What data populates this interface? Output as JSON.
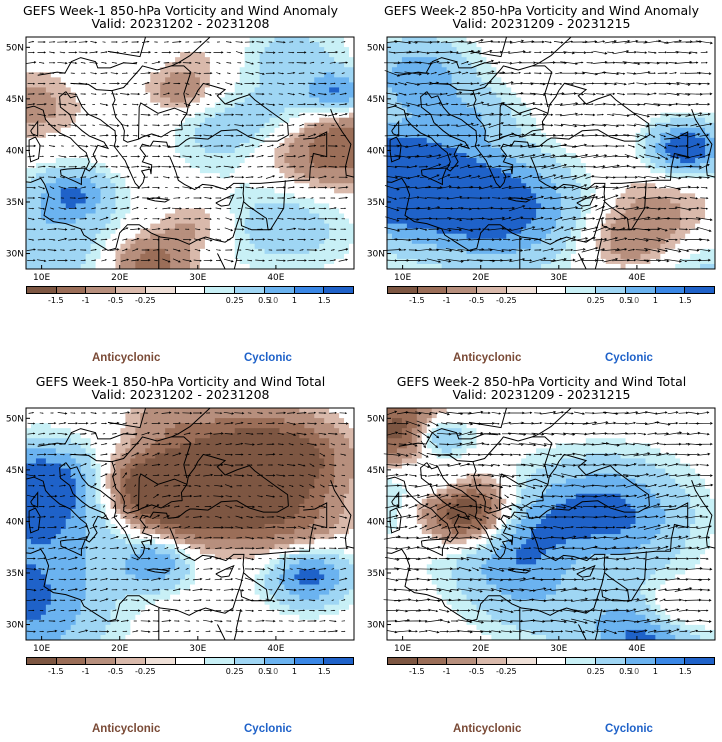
{
  "panels": [
    {
      "title": "GEFS Week-1 850-hPa Vorticity and Wind Anomaly",
      "valid": "Valid: 20231202 - 20231208"
    },
    {
      "title": "GEFS Week-2 850-hPa Vorticity and Wind Anomaly",
      "valid": "Valid: 20231209 - 20231215"
    },
    {
      "title": "GEFS Week-1 850-hPa Vorticity and Wind Total",
      "valid": "Valid: 20231202 - 20231208"
    },
    {
      "title": "GEFS Week-2 850-hPa Vorticity and Wind Total",
      "valid": "Valid: 20231209 - 20231215"
    }
  ],
  "axes": {
    "lat_labels": [
      "50N",
      "45N",
      "40N",
      "35N",
      "30N"
    ],
    "lon_labels": [
      "10E",
      "20E",
      "30E",
      "40E"
    ]
  },
  "colorbar": {
    "ticks": [
      "-1.5",
      "-1",
      "-0.5",
      "-0.25",
      "0.25",
      "0.5",
      "1",
      "1.5"
    ],
    "colors": [
      "#7d5642",
      "#9b6e58",
      "#b78f7d",
      "#d9b9ab",
      "#efe0d8",
      "#ffffff",
      "#c8f0f6",
      "#9fd6f4",
      "#6bb3f0",
      "#3a87e6",
      "#1f62c9"
    ],
    "vector_ref": "10"
  },
  "legend": {
    "anticyclonic": "Anticyclonic",
    "cyclonic": "Cyclonic"
  },
  "colors": {
    "anticyclonic": "#7a4a36",
    "cyclonic": "#1f62c9",
    "land_border": "#000000"
  }
}
